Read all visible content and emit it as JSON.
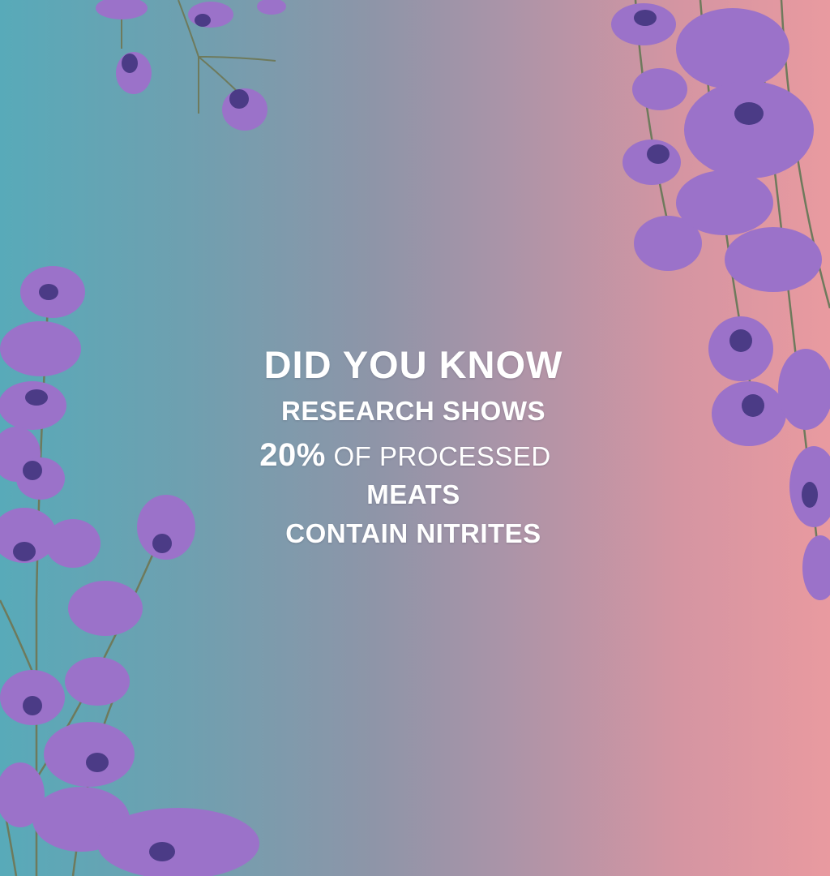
{
  "headline": "DID YOU KNOW",
  "research_line": "RESEARCH SHOWS",
  "stat": {
    "value": "20%",
    "rest": "OF PROCESSED"
  },
  "meats_line": "MEATS",
  "contain_line": "CONTAIN NITRITES",
  "colors": {
    "gradient_left": "#58aab9",
    "gradient_right": "#e99aa0",
    "petal": "#9b72c9",
    "petal_dark": "#4b3b86",
    "stem": "#6e7a5c",
    "text": "#ffffff"
  },
  "decoration": {
    "icon": "lavender-flower-icon"
  }
}
